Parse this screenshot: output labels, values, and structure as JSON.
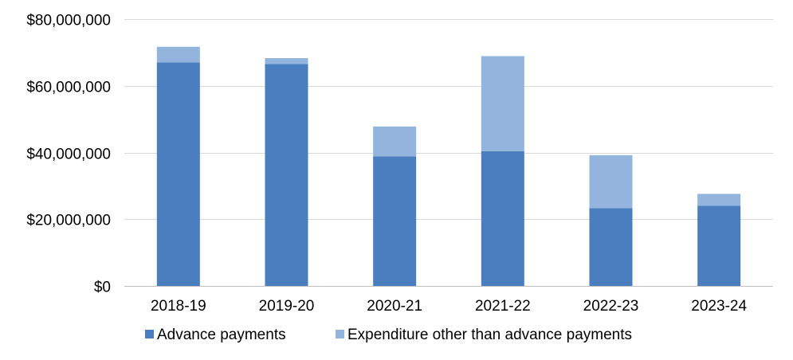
{
  "chart_data": {
    "type": "bar",
    "stacked": true,
    "categories": [
      "2018-19",
      "2019-20",
      "2020-21",
      "2021-22",
      "2022-23",
      "2023-24"
    ],
    "series": [
      {
        "name": "Advance payments",
        "color": "#4a7ebf",
        "values": [
          67000000,
          66500000,
          38800000,
          40400000,
          23300000,
          24000000
        ]
      },
      {
        "name": "Expenditure other than advance payments",
        "color": "#93b4dc",
        "values": [
          4700000,
          1800000,
          9000000,
          28500000,
          15900000,
          3600000
        ]
      }
    ],
    "ylim": [
      0,
      80000000
    ],
    "yticks": [
      0,
      20000000,
      40000000,
      60000000,
      80000000
    ],
    "ytick_labels": [
      "$0",
      "$20,000,000",
      "$40,000,000",
      "$60,000,000",
      "$80,000,000"
    ],
    "grid": true,
    "legend_position": "bottom"
  }
}
